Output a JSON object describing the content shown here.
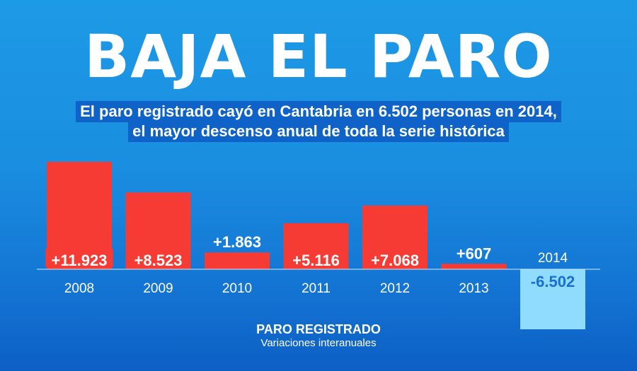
{
  "title": "BAJA EL PARO",
  "subtitle": [
    "El paro registrado cayó en Cantabria en 6.502 personas en 2014,",
    "el mayor descenso anual de toda la serie histórica"
  ],
  "colors": {
    "positive_bar": "#f53b34",
    "negative_bar": "#8fdcff",
    "negative_label": "#1a6fd0",
    "baseline": "#cfe8ff"
  },
  "chart_data": {
    "type": "bar",
    "categories": [
      "2008",
      "2009",
      "2010",
      "2011",
      "2012",
      "2013",
      "2014"
    ],
    "values": [
      11923,
      8523,
      1863,
      5116,
      7068,
      607,
      -6502
    ],
    "value_labels": [
      "+11.923",
      "+8.523",
      "+1.863",
      "+5.116",
      "+7.068",
      "+607",
      "-6.502"
    ],
    "ylim": [
      -6502,
      11923
    ],
    "grid": false,
    "legend": "none",
    "title": "PARO REGISTRADO",
    "subtitle": "Variaciones interanuales"
  }
}
